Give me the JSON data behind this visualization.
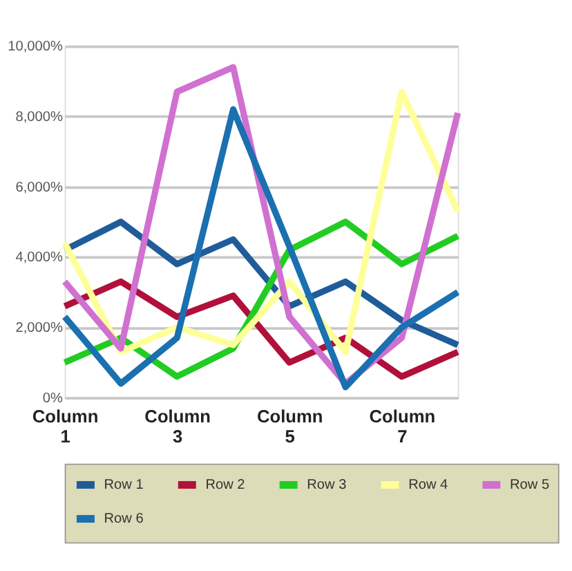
{
  "chart_data": {
    "type": "line",
    "categories": [
      "Column 1",
      null,
      "Column 3",
      null,
      "Column 5",
      null,
      "Column 7",
      null
    ],
    "series": [
      {
        "name": "Row 1",
        "color": "#1f5c99",
        "values": [
          4200,
          5000,
          3800,
          4500,
          2600,
          3300,
          2200,
          1500
        ]
      },
      {
        "name": "Row 2",
        "color": "#b0103a",
        "values": [
          2600,
          3300,
          2300,
          2900,
          1000,
          1700,
          600,
          1300
        ]
      },
      {
        "name": "Row 3",
        "color": "#22cc22",
        "values": [
          1000,
          1700,
          600,
          1400,
          4200,
          5000,
          3800,
          4600
        ]
      },
      {
        "name": "Row 4",
        "color": "#ffff99",
        "values": [
          4400,
          1300,
          2000,
          1500,
          3300,
          1300,
          8700,
          5300
        ]
      },
      {
        "name": "Row 5",
        "color": "#d070d0",
        "values": [
          3300,
          1400,
          8700,
          9400,
          2300,
          400,
          1700,
          8100
        ]
      },
      {
        "name": "Row 6",
        "color": "#1a70b0",
        "values": [
          2300,
          400,
          1700,
          8200,
          4300,
          300,
          2000,
          3000
        ]
      }
    ],
    "ylim": [
      0,
      10000
    ],
    "yticks": [
      {
        "value": 0,
        "label": "0%"
      },
      {
        "value": 2000,
        "label": "2,000%"
      },
      {
        "value": 4000,
        "label": "4,000%"
      },
      {
        "value": 6000,
        "label": "6,000%"
      },
      {
        "value": 8000,
        "label": "8,000%"
      },
      {
        "value": 10000,
        "label": "10,000%"
      }
    ],
    "grid": "y",
    "legend": "bottom",
    "marker": "none",
    "line_style": "solid"
  }
}
